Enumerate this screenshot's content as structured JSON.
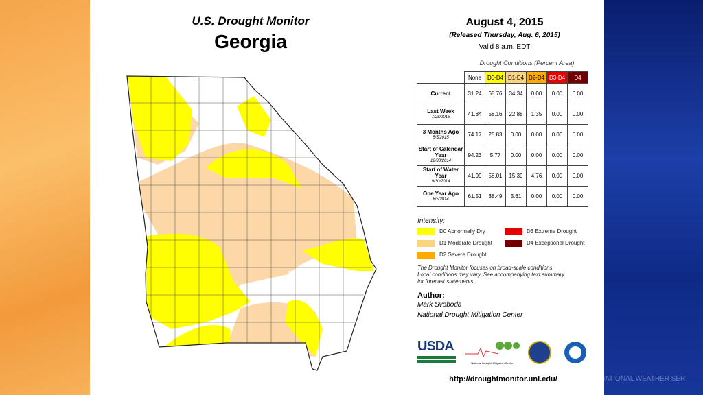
{
  "header": {
    "title": "U.S. Drought Monitor",
    "state": "Georgia",
    "date": "August 4, 2015",
    "released": "(Released Thursday, Aug. 6, 2015)",
    "valid": "Valid 8 a.m. EDT"
  },
  "table": {
    "caption": "Drought Conditions (Percent Area)",
    "columns": [
      "None",
      "D0-D4",
      "D1-D4",
      "D2-D4",
      "D3-D4",
      "D4"
    ],
    "rows": [
      {
        "label": "Current",
        "values": [
          "31.24",
          "68.76",
          "34.34",
          "0.00",
          "0.00",
          "0.00"
        ]
      },
      {
        "label": "Last Week",
        "date": "7/28/2015",
        "values": [
          "41.84",
          "58.16",
          "22.88",
          "1.35",
          "0.00",
          "0.00"
        ]
      },
      {
        "label": "3 Months Ago",
        "date": "5/5/2015",
        "values": [
          "74.17",
          "25.83",
          "0.00",
          "0.00",
          "0.00",
          "0.00"
        ]
      },
      {
        "label": "Start of Calendar Year",
        "date": "12/30/2014",
        "values": [
          "94.23",
          "5.77",
          "0.00",
          "0.00",
          "0.00",
          "0.00"
        ]
      },
      {
        "label": "Start of Water Year",
        "date": "9/30/2014",
        "values": [
          "41.99",
          "58.01",
          "15.39",
          "4.76",
          "0.00",
          "0.00"
        ]
      },
      {
        "label": "One Year Ago",
        "date": "8/5/2014",
        "values": [
          "61.51",
          "38.49",
          "5.61",
          "0.00",
          "0.00",
          "0.00"
        ]
      }
    ]
  },
  "legend": {
    "title": "Intensity:",
    "items": [
      "D0 Abnormally Dry",
      "D1 Moderate Drought",
      "D2 Severe Drought",
      "D3 Extreme Drought",
      "D4 Exceptional Drought"
    ]
  },
  "note": [
    "The Drought Monitor focuses on broad-scale conditions.",
    "Local conditions may vary. See accompanying text summary",
    "for forecast statements."
  ],
  "author": {
    "heading": "Author:",
    "name": "Mark Svoboda",
    "org": "National Drought Mitigation Center"
  },
  "logos": {
    "usda": "USDA",
    "ndmc": "National Drought Mitigation Center"
  },
  "url": "http://droughtmonitor.unl.edu/",
  "watermark": "NATIONAL WEATHER SER"
}
